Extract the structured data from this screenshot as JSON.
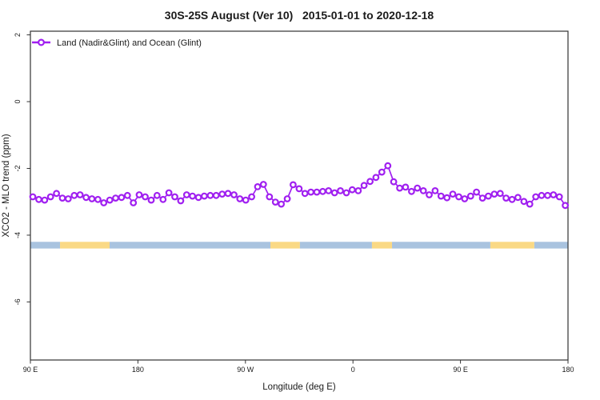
{
  "title": "30S-25S August (Ver 10)   2015-01-01 to 2020-12-18",
  "legend": {
    "label": "Land (Nadir&Glint) and Ocean (Glint)"
  },
  "colors": {
    "series": "#A020F0",
    "ocean_band": "#A9C3DF",
    "land_band": "#FAD985",
    "axis": "#333333"
  },
  "chart_data": {
    "type": "line",
    "title": "30S-25S August (Ver 10)   2015-01-01 to 2020-12-18",
    "xlabel": "Longitude (deg E)",
    "ylabel": "XCO2 - MLO trend (ppm)",
    "xlim": [
      90,
      540
    ],
    "ylim": [
      -7.74,
      2.11
    ],
    "grid": false,
    "legend_position": "top-left-inside",
    "x_ticks": [
      {
        "pos": 90,
        "label": "90 E"
      },
      {
        "pos": 180,
        "label": "180"
      },
      {
        "pos": 270,
        "label": "90 W"
      },
      {
        "pos": 360,
        "label": "0"
      },
      {
        "pos": 450,
        "label": "90 E"
      },
      {
        "pos": 540,
        "label": "180"
      }
    ],
    "y_ticks": [
      {
        "pos": 2,
        "label": "2"
      },
      {
        "pos": 0,
        "label": "0"
      },
      {
        "pos": -2,
        "label": "-2"
      },
      {
        "pos": -4,
        "label": "-4"
      },
      {
        "pos": -6,
        "label": "-6"
      }
    ],
    "series": [
      {
        "name": "Land (Nadir&Glint) and Ocean (Glint)",
        "color": "#A020F0",
        "marker": "open-circle",
        "x": [
          92.0,
          97.0,
          101.9,
          106.9,
          111.8,
          116.8,
          121.7,
          126.7,
          131.6,
          136.6,
          141.5,
          146.5,
          151.4,
          156.4,
          161.3,
          166.3,
          171.2,
          176.2,
          181.1,
          186.1,
          191.1,
          196.0,
          201.0,
          205.9,
          210.9,
          215.8,
          220.8,
          225.7,
          230.7,
          235.6,
          240.6,
          245.5,
          250.5,
          255.4,
          260.4,
          265.3,
          270.3,
          275.2,
          280.2,
          285.1,
          290.1,
          295.1,
          300.0,
          305.0,
          309.9,
          314.9,
          319.8,
          324.8,
          329.7,
          334.7,
          339.6,
          344.6,
          349.5,
          354.5,
          359.4,
          364.4,
          369.3,
          374.3,
          379.2,
          384.2,
          389.2,
          394.1,
          399.1,
          404.0,
          409.0,
          413.9,
          418.9,
          423.8,
          428.8,
          433.7,
          438.7,
          443.6,
          448.6,
          453.5,
          458.5,
          463.4,
          468.4,
          473.3,
          478.3,
          483.3,
          488.2,
          493.2,
          498.1,
          503.1,
          508.0,
          513.0,
          517.9,
          522.9,
          527.8,
          532.8,
          537.7
        ],
        "y": [
          -2.85,
          -2.93,
          -2.95,
          -2.85,
          -2.75,
          -2.89,
          -2.91,
          -2.81,
          -2.79,
          -2.87,
          -2.91,
          -2.93,
          -3.03,
          -2.95,
          -2.89,
          -2.87,
          -2.81,
          -3.03,
          -2.79,
          -2.85,
          -2.95,
          -2.81,
          -2.93,
          -2.73,
          -2.85,
          -2.97,
          -2.79,
          -2.83,
          -2.87,
          -2.83,
          -2.81,
          -2.81,
          -2.77,
          -2.75,
          -2.79,
          -2.91,
          -2.95,
          -2.85,
          -2.55,
          -2.48,
          -2.85,
          -3.01,
          -3.07,
          -2.91,
          -2.49,
          -2.61,
          -2.75,
          -2.71,
          -2.71,
          -2.69,
          -2.67,
          -2.73,
          -2.67,
          -2.73,
          -2.64,
          -2.67,
          -2.51,
          -2.39,
          -2.27,
          -2.11,
          -1.92,
          -2.4,
          -2.59,
          -2.56,
          -2.69,
          -2.59,
          -2.67,
          -2.79,
          -2.67,
          -2.83,
          -2.88,
          -2.77,
          -2.85,
          -2.91,
          -2.83,
          -2.71,
          -2.89,
          -2.83,
          -2.77,
          -2.75,
          -2.89,
          -2.93,
          -2.87,
          -2.99,
          -3.07,
          -2.85,
          -2.81,
          -2.81,
          -2.79,
          -2.85,
          -3.11
        ]
      }
    ],
    "surface_band": {
      "y_top": -4.2,
      "y_bottom": -4.4,
      "segments": [
        {
          "from": 90.0,
          "to": 114.8,
          "type": "ocean"
        },
        {
          "from": 114.8,
          "to": 156.3,
          "type": "land"
        },
        {
          "from": 156.3,
          "to": 290.9,
          "type": "ocean"
        },
        {
          "from": 290.9,
          "to": 315.6,
          "type": "land"
        },
        {
          "from": 315.6,
          "to": 375.9,
          "type": "ocean"
        },
        {
          "from": 375.9,
          "to": 392.7,
          "type": "land"
        },
        {
          "from": 392.7,
          "to": 475.0,
          "type": "ocean"
        },
        {
          "from": 475.0,
          "to": 511.8,
          "type": "land"
        },
        {
          "from": 511.8,
          "to": 540.0,
          "type": "ocean"
        }
      ]
    }
  }
}
